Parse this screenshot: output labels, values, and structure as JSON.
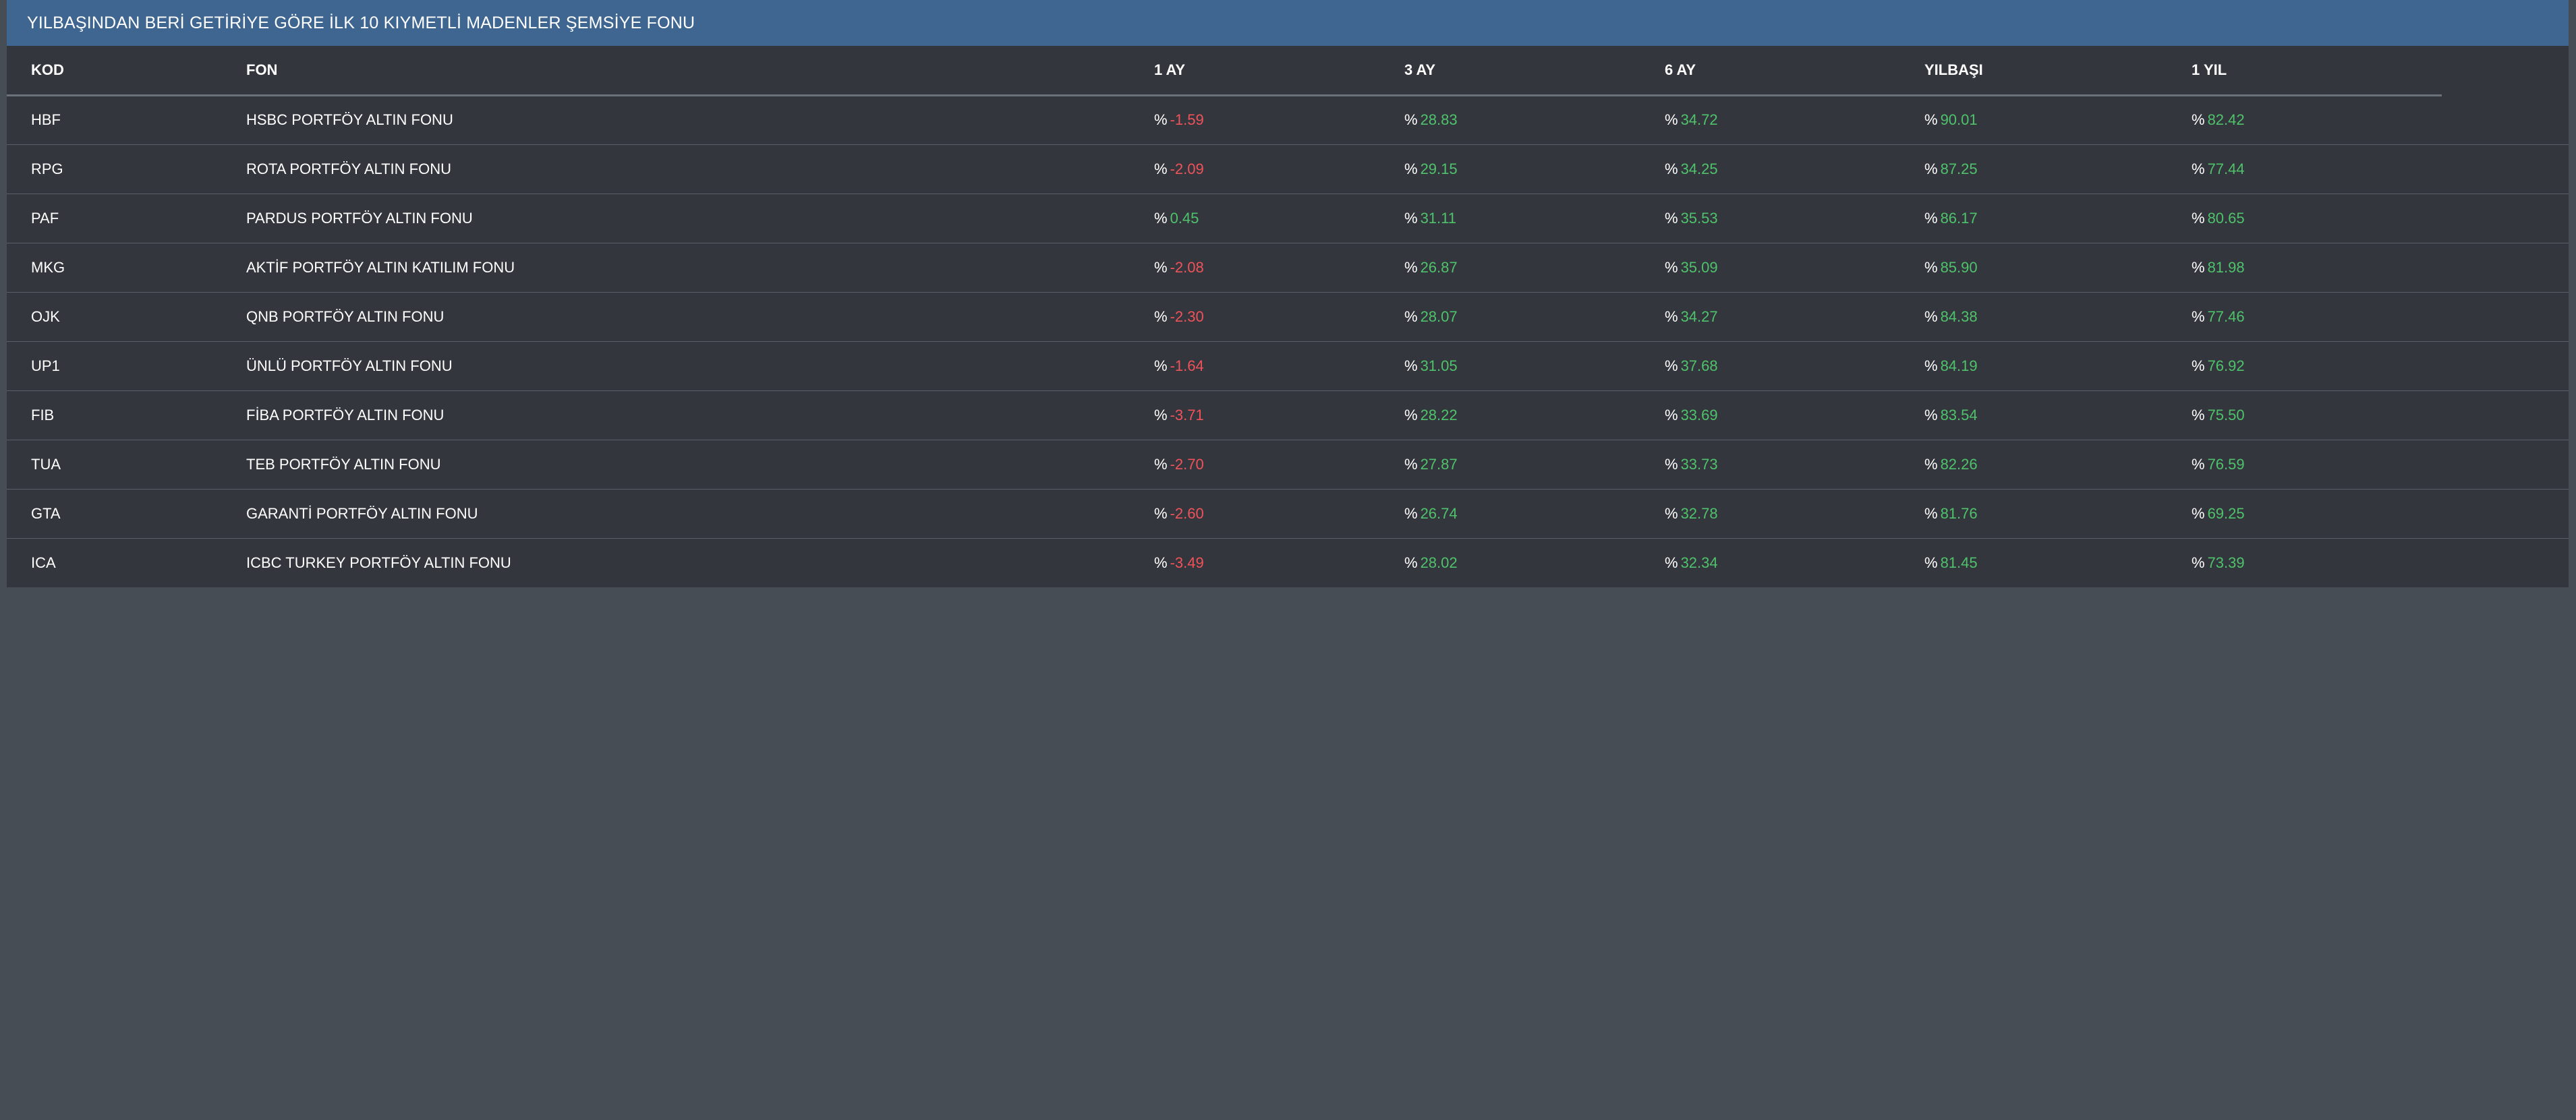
{
  "panel": {
    "title": "YILBAŞINDAN BERİ GETİRİYE GÖRE İLK 10 KIYMETLİ MADENLER ŞEMSİYE FONU"
  },
  "table": {
    "headers": {
      "kod": "KOD",
      "fon": "FON",
      "m1": "1 AY",
      "m3": "3 AY",
      "m6": "6 AY",
      "ytd": "YILBAŞI",
      "y1": "1 YIL"
    },
    "percent_sign": "%",
    "rows": [
      {
        "kod": "HBF",
        "fon": "HSBC PORTFÖY ALTIN FONU",
        "m1": "-1.59",
        "m3": "28.83",
        "m6": "34.72",
        "ytd": "90.01",
        "y1": "82.42"
      },
      {
        "kod": "RPG",
        "fon": "ROTA PORTFÖY ALTIN FONU",
        "m1": "-2.09",
        "m3": "29.15",
        "m6": "34.25",
        "ytd": "87.25",
        "y1": "77.44"
      },
      {
        "kod": "PAF",
        "fon": "PARDUS PORTFÖY ALTIN FONU",
        "m1": "0.45",
        "m3": "31.11",
        "m6": "35.53",
        "ytd": "86.17",
        "y1": "80.65"
      },
      {
        "kod": "MKG",
        "fon": "AKTİF PORTFÖY ALTIN KATILIM FONU",
        "m1": "-2.08",
        "m3": "26.87",
        "m6": "35.09",
        "ytd": "85.90",
        "y1": "81.98"
      },
      {
        "kod": "OJK",
        "fon": "QNB PORTFÖY ALTIN FONU",
        "m1": "-2.30",
        "m3": "28.07",
        "m6": "34.27",
        "ytd": "84.38",
        "y1": "77.46"
      },
      {
        "kod": "UP1",
        "fon": "ÜNLÜ PORTFÖY ALTIN FONU",
        "m1": "-1.64",
        "m3": "31.05",
        "m6": "37.68",
        "ytd": "84.19",
        "y1": "76.92"
      },
      {
        "kod": "FIB",
        "fon": "FİBA PORTFÖY ALTIN FONU",
        "m1": "-3.71",
        "m3": "28.22",
        "m6": "33.69",
        "ytd": "83.54",
        "y1": "75.50"
      },
      {
        "kod": "TUA",
        "fon": "TEB PORTFÖY ALTIN FONU",
        "m1": "-2.70",
        "m3": "27.87",
        "m6": "33.73",
        "ytd": "82.26",
        "y1": "76.59"
      },
      {
        "kod": "GTA",
        "fon": "GARANTİ PORTFÖY ALTIN FONU",
        "m1": "-2.60",
        "m3": "26.74",
        "m6": "32.78",
        "ytd": "81.76",
        "y1": "69.25"
      },
      {
        "kod": "ICA",
        "fon": "ICBC TURKEY PORTFÖY ALTIN FONU",
        "m1": "-3.49",
        "m3": "28.02",
        "m6": "32.34",
        "ytd": "81.45",
        "y1": "73.39"
      }
    ]
  },
  "colors": {
    "header_bar": "#3f6690",
    "panel_bg": "#33373d",
    "page_bg": "#464d55",
    "negative": "#f0525a",
    "positive": "#4fc26b"
  }
}
